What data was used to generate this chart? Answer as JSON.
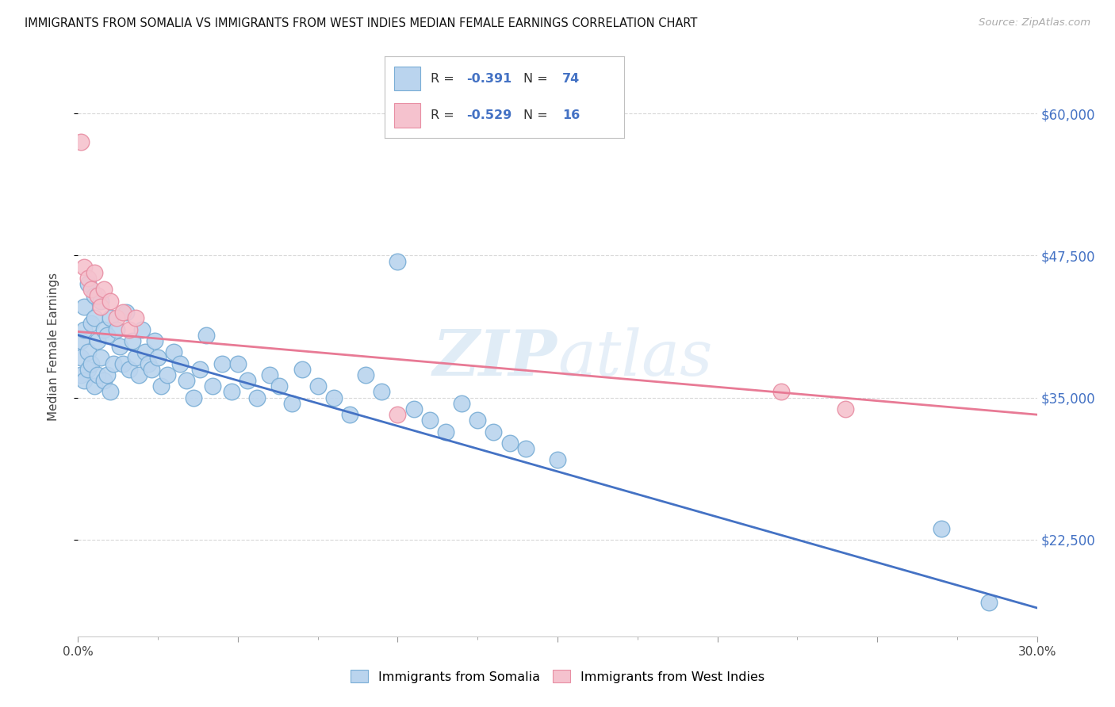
{
  "title": "IMMIGRANTS FROM SOMALIA VS IMMIGRANTS FROM WEST INDIES MEDIAN FEMALE EARNINGS CORRELATION CHART",
  "source": "Source: ZipAtlas.com",
  "ylabel": "Median Female Earnings",
  "xlim": [
    0.0,
    0.3
  ],
  "ylim": [
    14000,
    65000
  ],
  "xtick_values": [
    0.0,
    0.05,
    0.1,
    0.15,
    0.2,
    0.25,
    0.3
  ],
  "xtick_labels": [
    "0.0%",
    "",
    "",
    "",
    "",
    "",
    "30.0%"
  ],
  "ytick_values": [
    22500,
    35000,
    47500,
    60000
  ],
  "ytick_labels": [
    "$22,500",
    "$35,000",
    "$47,500",
    "$60,000"
  ],
  "somalia_color": "#bad4ee",
  "somalia_edge": "#7aaed6",
  "west_indies_color": "#f5c2ce",
  "west_indies_edge": "#e88fa4",
  "somalia_R": "-0.391",
  "somalia_N": "74",
  "west_indies_R": "-0.529",
  "west_indies_N": "16",
  "somalia_line_color": "#4472c4",
  "west_indies_line_color": "#e87a95",
  "legend_somalia_label": "Immigrants from Somalia",
  "legend_west_indies_label": "Immigrants from West Indies",
  "watermark": "ZIPatlas",
  "somalia_line_x0": 0.0,
  "somalia_line_y0": 40500,
  "somalia_line_x1": 0.3,
  "somalia_line_y1": 16500,
  "wi_line_x0": 0.0,
  "wi_line_y0": 40800,
  "wi_line_x1": 0.3,
  "wi_line_y1": 33500,
  "somalia_x": [
    0.001,
    0.001,
    0.001,
    0.002,
    0.002,
    0.002,
    0.003,
    0.003,
    0.003,
    0.004,
    0.004,
    0.005,
    0.005,
    0.005,
    0.006,
    0.006,
    0.007,
    0.007,
    0.008,
    0.008,
    0.009,
    0.009,
    0.01,
    0.01,
    0.011,
    0.012,
    0.013,
    0.014,
    0.015,
    0.016,
    0.017,
    0.018,
    0.019,
    0.02,
    0.021,
    0.022,
    0.023,
    0.024,
    0.025,
    0.026,
    0.028,
    0.03,
    0.032,
    0.034,
    0.036,
    0.038,
    0.04,
    0.042,
    0.045,
    0.048,
    0.05,
    0.053,
    0.056,
    0.06,
    0.063,
    0.067,
    0.07,
    0.075,
    0.08,
    0.085,
    0.09,
    0.095,
    0.1,
    0.105,
    0.11,
    0.115,
    0.12,
    0.125,
    0.13,
    0.135,
    0.14,
    0.15,
    0.27,
    0.285
  ],
  "somalia_y": [
    40000,
    38500,
    37000,
    43000,
    41000,
    36500,
    45000,
    39000,
    37500,
    41500,
    38000,
    44000,
    42000,
    36000,
    40000,
    37000,
    43500,
    38500,
    41000,
    36500,
    40500,
    37000,
    42000,
    35500,
    38000,
    41000,
    39500,
    38000,
    42500,
    37500,
    40000,
    38500,
    37000,
    41000,
    39000,
    38000,
    37500,
    40000,
    38500,
    36000,
    37000,
    39000,
    38000,
    36500,
    35000,
    37500,
    40500,
    36000,
    38000,
    35500,
    38000,
    36500,
    35000,
    37000,
    36000,
    34500,
    37500,
    36000,
    35000,
    33500,
    37000,
    35500,
    47000,
    34000,
    33000,
    32000,
    34500,
    33000,
    32000,
    31000,
    30500,
    29500,
    23500,
    17000
  ],
  "west_indies_x": [
    0.001,
    0.002,
    0.003,
    0.004,
    0.005,
    0.006,
    0.007,
    0.008,
    0.01,
    0.012,
    0.014,
    0.016,
    0.018,
    0.1,
    0.22,
    0.24
  ],
  "west_indies_y": [
    57500,
    46500,
    45500,
    44500,
    46000,
    44000,
    43000,
    44500,
    43500,
    42000,
    42500,
    41000,
    42000,
    33500,
    35500,
    34000
  ],
  "background_color": "#ffffff",
  "grid_color": "#d8d8d8"
}
